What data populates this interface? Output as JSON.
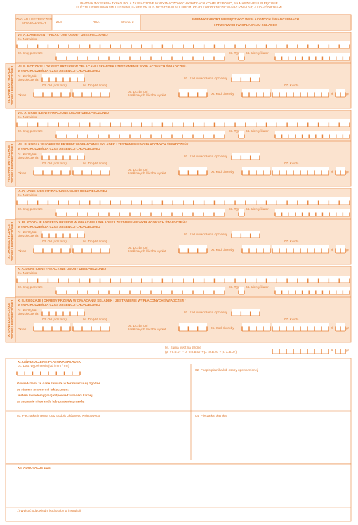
{
  "header": {
    "instructions": [
      "PŁATNIK WYPEŁNIA TYLKO POLA ZAZNACZONE W WYZNACZONYCH KRATKACH KOMPUTEROWO, NA MASZYNIE LUB RĘCZNIE",
      "DUŻYMI DRUKOWANYMI LITERAMI, CZARNYM LUB NIEBIESKIM KOLOREM. PRZED WYPEŁNIENIEM ZAPOZNAJ SIĘ Z OBJAŚNIENIAMI"
    ],
    "office": [
      "ZAKŁAD UBEZPIECZEŃ",
      "SPOŁECZNYCH"
    ],
    "form": "ZUS",
    "code": "RSA",
    "page_label": "Strona",
    "page": 2,
    "title": [
      "IMIENNY RAPORT MIESIĘCZNY O WYPŁACONYCH ŚWIADCZENIACH",
      "I PRZERWACH W OPŁACANIU SKŁADEK"
    ]
  },
  "section_labels": {
    "surname": "01. Nazwisko",
    "first_name": "02. Imię pierwsze",
    "type": "03. Typ",
    "identifier": "04. Identyfikator",
    "insurance_code": [
      "01. Kod tytułu",
      "ubezpieczenia"
    ],
    "benefit_code": "02. Kod świadczenia / przerwy",
    "from": "03. Od (dd / mm)",
    "to": "04. Do (dd / mm)",
    "days": [
      "05. Liczba dni",
      "zasiłkowych / liczba wypłat"
    ],
    "disease": "06. Kod choroby",
    "amount": "07. Kwota",
    "period": "Okres",
    "zl": "zł",
    "gr": "gr"
  },
  "sections": [
    {
      "sidebar": [
        "VII. DANE DOTYCZĄCE",
        "OSOBY UBEZPIECZONEJ"
      ],
      "a_title": "VII. A. DANE IDENTYFIKACYJNE OSOBY UBEZPIECZONEJ",
      "b_title": [
        "VII. B. RODZAJE I OKRESY PRZERW W OPŁACANIU SKŁADEK I ZESTAWIENIE WYPŁACONYCH ŚWIADCZEŃ /",
        "WYNAGRODZEŃ ZA CZAS ABSENCJI CHOROBOWEJ"
      ]
    },
    {
      "sidebar": [
        "VIII. DANE DOTYCZĄCE",
        "OSOBY UBEZPIECZONEJ"
      ],
      "a_title": "VIII. A. DANE IDENTYFIKACYJNE OSOBY UBEZPIECZONEJ",
      "b_title": [
        "VIII. B. RODZAJE I OKRESY PRZERW W OPŁACANIU SKŁADEK I ZESTAWIENIE WYPŁACONYCH ŚWIADCZEŃ /",
        "WYNAGRODZEŃ ZA CZAS ABSENCJI CHOROBOWEJ"
      ]
    },
    {
      "sidebar": [
        "IX. DANE DOTYCZĄCE",
        "OSOBY UBEZPIECZONEJ"
      ],
      "a_title": "IX. A. DANE IDENTYFIKACYJNE OSOBY UBEZPIECZONEJ",
      "b_title": [
        "IX. B. RODZAJE I OKRESY PRZERW W OPŁACANIU SKŁADEK I ZESTAWIENIE WYPŁACONYCH ŚWIADCZEŃ /",
        "WYNAGRODZEŃ ZA CZAS ABSENCJI CHOROBOWEJ"
      ]
    },
    {
      "sidebar": [
        "X. DANE DOTYCZĄCE",
        "OSOBY UBEZPIECZONEJ"
      ],
      "a_title": "X. A. DANE IDENTYFIKACYJNE OSOBY UBEZPIECZONEJ",
      "b_title": [
        "X. B. RODZAJE I OKRESY PRZERW W OPŁACANIU SKŁADEK I ZESTAWIENIE WYPŁACONYCH ŚWIADCZEŃ /",
        "WYNAGRODZEŃ ZA CZAS ABSENCJI CHOROBOWEJ"
      ]
    }
  ],
  "sum": {
    "label": "04. Suma kwot na stronie",
    "formula": "(p. VII.B.07 + p. VIII.B.07 + p. IX.B.07 + p. X.B.07)"
  },
  "declaration": {
    "title": "XI. OŚWIADCZENIE PŁATNIKA SKŁADEK",
    "date": "01. Data wypełnienia (dd / mm / rrrr)",
    "signature": "02. Podpis płatnika lub osoby upoważnionej",
    "statement": [
      "Oświadczam, że dane zawarte w formularzu są zgodne",
      "ze stanem prawnym i faktycznym.",
      "Jestem świadomy(-ma) odpowiedzialności karnej",
      "za zeznanie nieprawdy lub zatajenie prawdy."
    ],
    "accountant": "03. Pieczątka imienna oraz podpis Głównego Księgowego",
    "stamp": "04. Pieczątka płatnika"
  },
  "notes": {
    "title": "XII. ADNOTACJE ZUS",
    "footnote": "1) Wpisać odpowiedni kod osoby w instrukcji"
  }
}
